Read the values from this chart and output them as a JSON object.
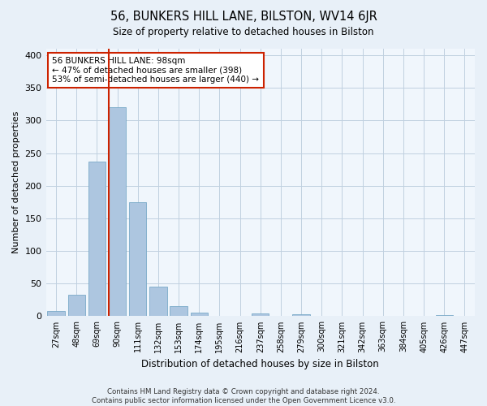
{
  "title": "56, BUNKERS HILL LANE, BILSTON, WV14 6JR",
  "subtitle": "Size of property relative to detached houses in Bilston",
  "xlabel": "Distribution of detached houses by size in Bilston",
  "ylabel": "Number of detached properties",
  "categories": [
    "27sqm",
    "48sqm",
    "69sqm",
    "90sqm",
    "111sqm",
    "132sqm",
    "153sqm",
    "174sqm",
    "195sqm",
    "216sqm",
    "237sqm",
    "258sqm",
    "279sqm",
    "300sqm",
    "321sqm",
    "342sqm",
    "363sqm",
    "384sqm",
    "405sqm",
    "426sqm",
    "447sqm"
  ],
  "values": [
    8,
    33,
    237,
    320,
    175,
    45,
    15,
    5,
    0,
    0,
    4,
    0,
    3,
    0,
    0,
    0,
    0,
    0,
    0,
    2,
    0
  ],
  "bar_color": "#adc6e0",
  "bar_edge_color": "#7aaac8",
  "vline_color": "#cc2200",
  "annotation_text": "56 BUNKERS HILL LANE: 98sqm\n← 47% of detached houses are smaller (398)\n53% of semi-detached houses are larger (440) →",
  "annotation_box_color": "#ffffff",
  "annotation_box_edge": "#cc2200",
  "ylim": [
    0,
    410
  ],
  "yticks": [
    0,
    50,
    100,
    150,
    200,
    250,
    300,
    350,
    400
  ],
  "footer": "Contains HM Land Registry data © Crown copyright and database right 2024.\nContains public sector information licensed under the Open Government Licence v3.0.",
  "bg_color": "#e8f0f8",
  "plot_bg_color": "#f0f6fc",
  "grid_color": "#c0d0e0",
  "vline_bin_index": 3
}
